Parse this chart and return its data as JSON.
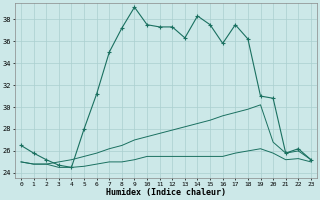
{
  "xlabel": "Humidex (Indice chaleur)",
  "background_color": "#cce8e8",
  "grid_color": "#aacfcf",
  "line_color": "#1a7060",
  "xlim": [
    -0.5,
    23.5
  ],
  "ylim": [
    23.5,
    39.5
  ],
  "yticks": [
    24,
    26,
    28,
    30,
    32,
    34,
    36,
    38
  ],
  "xticks": [
    0,
    1,
    2,
    3,
    4,
    5,
    6,
    7,
    8,
    9,
    10,
    11,
    12,
    13,
    14,
    15,
    16,
    17,
    18,
    19,
    20,
    21,
    22,
    23
  ],
  "line1_x": [
    0,
    1,
    2,
    3,
    4,
    5,
    6,
    7,
    8,
    9,
    10,
    11,
    12,
    13,
    14,
    15,
    16,
    17,
    18,
    19,
    20,
    21,
    22,
    23
  ],
  "line1_y": [
    26.5,
    25.8,
    25.2,
    24.7,
    24.5,
    28.0,
    31.2,
    35.0,
    37.2,
    39.1,
    37.5,
    37.3,
    37.3,
    36.3,
    38.3,
    37.5,
    35.8,
    37.5,
    36.2,
    31.0,
    30.8,
    25.8,
    26.2,
    25.2
  ],
  "line2_x": [
    0,
    1,
    2,
    3,
    4,
    5,
    6,
    7,
    8,
    9,
    10,
    11,
    12,
    13,
    14,
    15,
    16,
    17,
    18,
    19,
    20,
    21,
    22,
    23
  ],
  "line2_y": [
    25.0,
    24.8,
    24.8,
    25.0,
    25.2,
    25.5,
    25.8,
    26.2,
    26.5,
    27.0,
    27.3,
    27.6,
    27.9,
    28.2,
    28.5,
    28.8,
    29.2,
    29.5,
    29.8,
    30.2,
    26.8,
    25.8,
    26.0,
    25.2
  ],
  "line3_x": [
    0,
    1,
    2,
    3,
    4,
    5,
    6,
    7,
    8,
    9,
    10,
    11,
    12,
    13,
    14,
    15,
    16,
    17,
    18,
    19,
    20,
    21,
    22,
    23
  ],
  "line3_y": [
    25.0,
    24.8,
    24.8,
    24.5,
    24.5,
    24.6,
    24.8,
    25.0,
    25.0,
    25.2,
    25.5,
    25.5,
    25.5,
    25.5,
    25.5,
    25.5,
    25.5,
    25.8,
    26.0,
    26.2,
    25.8,
    25.2,
    25.3,
    25.0
  ]
}
